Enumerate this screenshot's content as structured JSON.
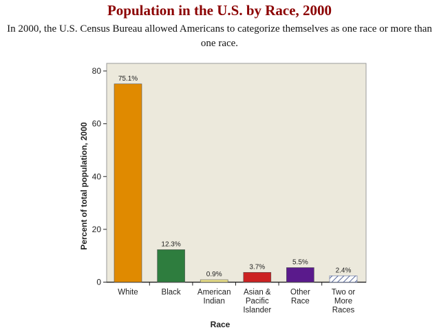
{
  "header": {
    "title": "Population in the U.S. by Race, 2000",
    "subtitle": "In 2000, the U.S. Census Bureau allowed Americans to categorize themselves as one race or more than one race."
  },
  "chart_data": {
    "type": "bar",
    "title": "Population in the U.S. by Race, 2000",
    "xlabel": "Race",
    "ylabel": "Percent of total population, 2000",
    "ylim": [
      0,
      80
    ],
    "yticks": [
      0,
      20,
      40,
      60,
      80
    ],
    "grid": false,
    "legend": "none",
    "background": "#ece9dc",
    "categories": [
      [
        "White"
      ],
      [
        "Black"
      ],
      [
        "American",
        "Indian"
      ],
      [
        "Asian &",
        "Pacific",
        "Islander"
      ],
      [
        "Other",
        "Race"
      ],
      [
        "Two or",
        "More",
        "Races"
      ]
    ],
    "values": [
      75.1,
      12.3,
      0.9,
      3.7,
      5.5,
      2.4
    ],
    "data_labels": [
      "75.1%",
      "12.3%",
      "0.9%",
      "3.7%",
      "5.5%",
      "2.4%"
    ],
    "colors": [
      "#e08a00",
      "#2e7d3e",
      "#f0e68c",
      "#cc2222",
      "#5a1a8c",
      "hatched"
    ]
  }
}
